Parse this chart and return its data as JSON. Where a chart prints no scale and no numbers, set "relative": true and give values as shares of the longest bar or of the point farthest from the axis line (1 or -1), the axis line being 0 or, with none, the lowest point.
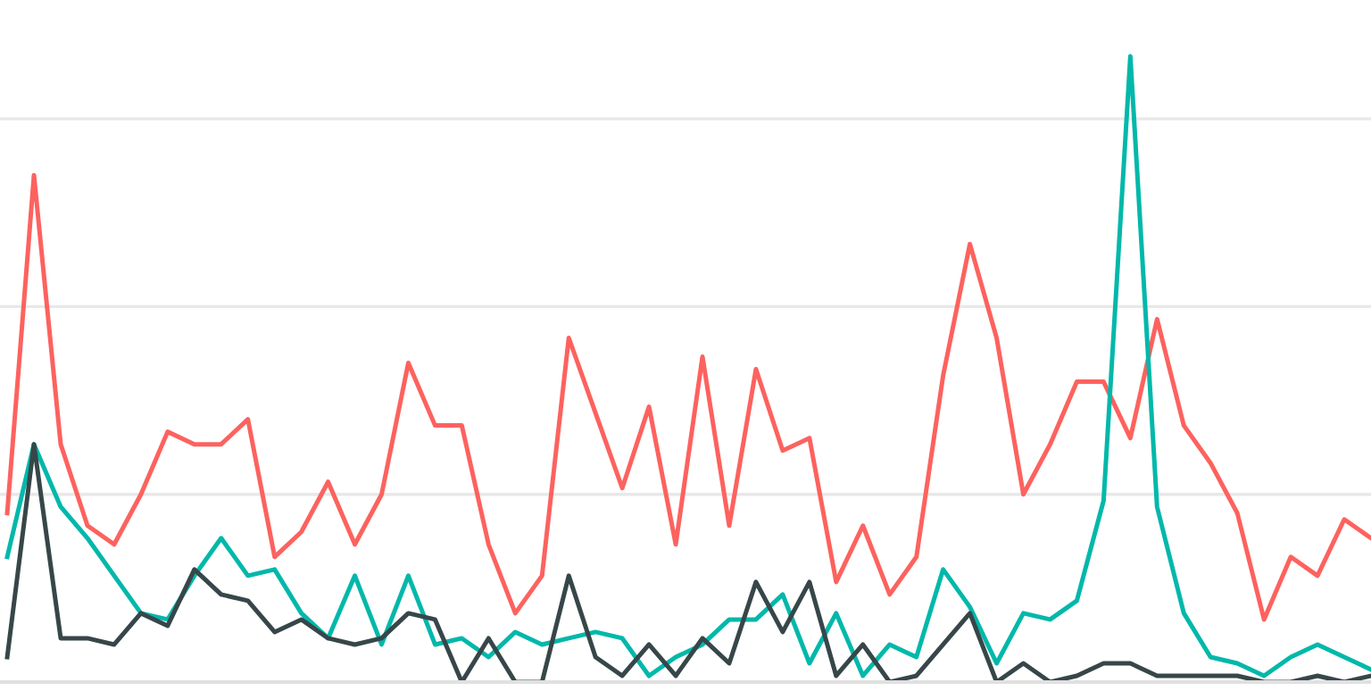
{
  "chart_data": {
    "type": "line",
    "relative": true,
    "grid": "y",
    "legend": false,
    "marker": "none",
    "line_style": "solid",
    "categories": [
      null,
      null,
      null,
      null,
      null,
      null,
      null,
      null,
      null,
      null,
      null,
      null,
      null,
      null,
      null,
      null,
      null,
      null,
      null,
      null,
      null,
      null,
      null,
      null,
      null,
      null,
      null,
      null,
      null,
      null,
      null,
      null,
      null,
      null,
      null,
      null,
      null,
      null,
      null,
      null,
      null,
      null,
      null,
      null,
      null,
      null,
      null,
      null,
      null,
      null,
      null,
      null
    ],
    "series": [
      {
        "color": "#fd625e",
        "values": [
          0.27,
          0.81,
          0.38,
          0.25,
          0.22,
          0.3,
          0.4,
          0.38,
          0.38,
          0.42,
          0.2,
          0.24,
          0.32,
          0.22,
          0.3,
          0.51,
          0.41,
          0.41,
          0.22,
          0.11,
          0.17,
          0.55,
          0.43,
          0.31,
          0.44,
          0.22,
          0.52,
          0.25,
          0.5,
          0.37,
          0.39,
          0.16,
          0.25,
          0.14,
          0.2,
          0.49,
          0.7,
          0.55,
          0.3,
          0.38,
          0.48,
          0.48,
          0.39,
          0.58,
          0.41,
          0.35,
          0.27,
          0.1,
          0.2,
          0.17,
          0.26,
          0.23
        ]
      },
      {
        "color": "#01b8aa",
        "values": [
          0.2,
          0.38,
          0.28,
          0.23,
          0.17,
          0.11,
          0.1,
          0.17,
          0.23,
          0.17,
          0.18,
          0.11,
          0.07,
          0.17,
          0.06,
          0.17,
          0.06,
          0.07,
          0.04,
          0.08,
          0.06,
          0.07,
          0.08,
          0.07,
          0.01,
          0.04,
          0.06,
          0.1,
          0.1,
          0.14,
          0.03,
          0.11,
          0.01,
          0.06,
          0.04,
          0.18,
          0.12,
          0.03,
          0.11,
          0.1,
          0.13,
          0.29,
          1,
          0.28,
          0.11,
          0.04,
          0.03,
          0.01,
          0.04,
          0.06,
          0.04,
          0.02
        ]
      },
      {
        "color": "#374649",
        "values": [
          0.04,
          0.38,
          0.07,
          0.07,
          0.06,
          0.11,
          0.09,
          0.18,
          0.14,
          0.13,
          0.08,
          0.1,
          0.07,
          0.06,
          0.07,
          0.11,
          0.1,
          0,
          0.07,
          0,
          0,
          0.17,
          0.04,
          0.01,
          0.06,
          0.01,
          0.07,
          0.03,
          0.16,
          0.08,
          0.16,
          0.01,
          0.06,
          0,
          0.01,
          0.06,
          0.11,
          0,
          0.03,
          0,
          0.01,
          0.03,
          0.03,
          0.01,
          0.01,
          0.01,
          0.01,
          0,
          0,
          0.01,
          0,
          0.01
        ]
      }
    ]
  }
}
